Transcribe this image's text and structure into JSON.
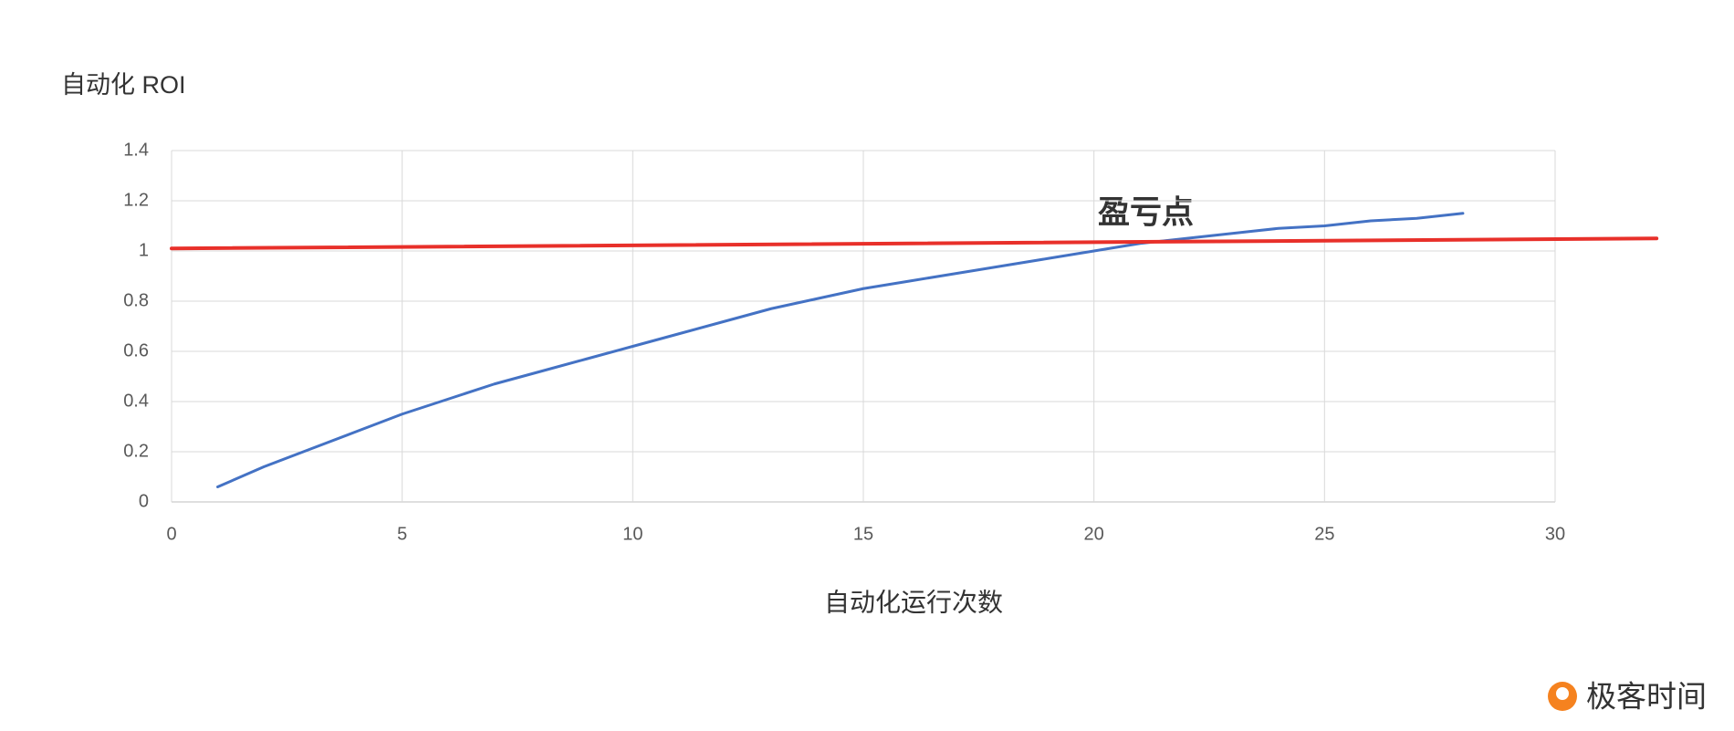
{
  "chart_data": {
    "type": "line",
    "y_label": "自动化 ROI",
    "x_label": "自动化运行次数",
    "annotation": "盈亏点",
    "xlim": [
      0,
      30
    ],
    "xticks": [
      0,
      5,
      10,
      15,
      20,
      25,
      30
    ],
    "ylim": [
      0,
      1.4
    ],
    "yticks": [
      0,
      0.2,
      0.4,
      0.6,
      0.8,
      1,
      1.2,
      1.4
    ],
    "grid": true,
    "series": [
      {
        "color": "#4472c4",
        "x": [
          1,
          2,
          3,
          4,
          5,
          6,
          7,
          8,
          9,
          10,
          11,
          12,
          13,
          14,
          15,
          16,
          17,
          18,
          19,
          20,
          21,
          22,
          23,
          24,
          25,
          26,
          27,
          28
        ],
        "values": [
          0.06,
          0.14,
          0.21,
          0.28,
          0.35,
          0.41,
          0.47,
          0.52,
          0.57,
          0.62,
          0.67,
          0.72,
          0.77,
          0.81,
          0.85,
          0.88,
          0.91,
          0.94,
          0.97,
          1.0,
          1.03,
          1.05,
          1.07,
          1.09,
          1.1,
          1.12,
          1.13,
          1.15
        ]
      },
      {
        "color": "#e8302a",
        "x": [
          0,
          32.2
        ],
        "values": [
          1.01,
          1.05
        ]
      }
    ]
  },
  "watermark": "极客时间"
}
